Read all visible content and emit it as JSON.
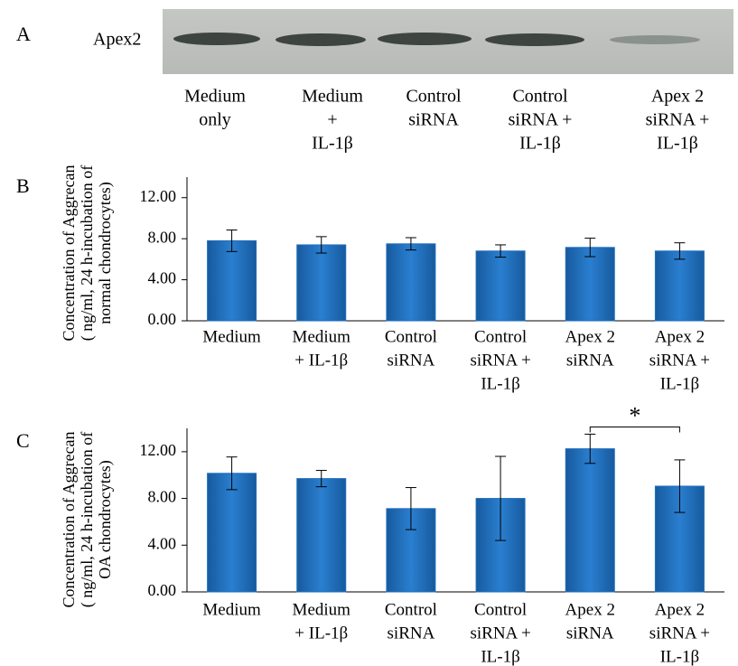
{
  "panel_a": {
    "label": "A",
    "protein": "Apex2",
    "lanes": [
      [
        "Medium",
        "only"
      ],
      [
        "Medium",
        "+",
        "IL-1β"
      ],
      [
        "Control",
        "siRNA"
      ],
      [
        "Control",
        "siRNA +",
        "IL-1β"
      ],
      [
        "Apex 2",
        "siRNA +",
        "IL-1β"
      ]
    ]
  },
  "chart_data": [
    {
      "type": "bar",
      "panel_label": "B",
      "ylabel": [
        "Concentration of Aggrecan",
        "( ng/ml, 24 h-incubation of",
        "normal chondrocytes)"
      ],
      "categories": [
        [
          "Medium"
        ],
        [
          "Medium",
          "+ IL-1β"
        ],
        [
          "Control",
          "siRNA"
        ],
        [
          "Control",
          "siRNA +",
          "IL-1β"
        ],
        [
          "Apex 2",
          "siRNA"
        ],
        [
          "Apex 2",
          "siRNA +",
          "IL-1β"
        ]
      ],
      "values": [
        7.8,
        7.4,
        7.5,
        6.8,
        7.15,
        6.8
      ],
      "errors": [
        1.05,
        0.8,
        0.6,
        0.6,
        0.9,
        0.8
      ],
      "color": "#1f6fbf",
      "ylim": [
        0,
        14
      ],
      "yticks": [
        {
          "value": 0,
          "label": "0.00"
        },
        {
          "value": 4,
          "label": "4.00"
        },
        {
          "value": 8,
          "label": "8.00"
        },
        {
          "value": 12,
          "label": "12.00"
        }
      ]
    },
    {
      "type": "bar",
      "panel_label": "C",
      "ylabel": [
        "Concentration of Aggrecan",
        "( ng/ml, 24 h-incubation of",
        "OA chondrocytes)"
      ],
      "categories": [
        [
          "Medium"
        ],
        [
          "Medium",
          "+ IL-1β"
        ],
        [
          "Control",
          "siRNA"
        ],
        [
          "Control",
          "siRNA +",
          "IL-1β"
        ],
        [
          "Apex 2",
          "siRNA"
        ],
        [
          "Apex 2",
          "siRNA +",
          "IL-1β"
        ]
      ],
      "values": [
        10.15,
        9.7,
        7.13,
        8.0,
        12.25,
        9.05
      ],
      "errors": [
        1.4,
        0.7,
        1.8,
        3.6,
        1.25,
        2.25
      ],
      "color": "#1f6fbf",
      "ylim": [
        0,
        14
      ],
      "yticks": [
        {
          "value": 0,
          "label": "0.00"
        },
        {
          "value": 4,
          "label": "4.00"
        },
        {
          "value": 8,
          "label": "8.00"
        },
        {
          "value": 12,
          "label": "12.00"
        }
      ],
      "annotation": "*"
    }
  ]
}
